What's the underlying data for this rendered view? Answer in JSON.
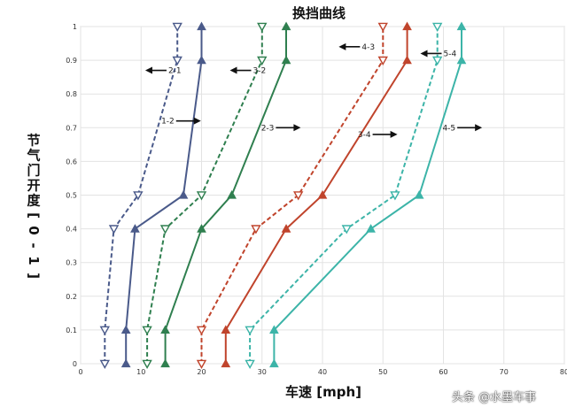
{
  "chart_data": {
    "type": "line",
    "title": "换挡曲线",
    "xlabel": "车速 [mph]",
    "ylabel": "节气门开度 [0-1]",
    "xlim": [
      0,
      80
    ],
    "ylim": [
      0,
      1
    ],
    "xticks": [
      "0",
      "10",
      "20",
      "30",
      "40",
      "50",
      "60",
      "70",
      "80"
    ],
    "yticks": [
      "0",
      "0.1",
      "0.2",
      "0.3",
      "0.4",
      "0.5",
      "0.6",
      "0.7",
      "0.8",
      "0.9",
      "1"
    ],
    "grid": true,
    "series": [
      {
        "name": "1-2",
        "style": "solid",
        "marker": "triangle-up",
        "color": "#4a5a8a",
        "x": [
          7.5,
          7.5,
          9,
          17,
          20,
          20
        ],
        "y": [
          0,
          0.1,
          0.4,
          0.5,
          0.9,
          1
        ]
      },
      {
        "name": "2-1",
        "style": "dashed",
        "marker": "triangle-down",
        "color": "#4a5a8a",
        "x": [
          4,
          4,
          5.5,
          9.5,
          16,
          16
        ],
        "y": [
          0,
          0.1,
          0.4,
          0.5,
          0.9,
          1
        ]
      },
      {
        "name": "2-3",
        "style": "solid",
        "marker": "triangle-up",
        "color": "#2f7f4f",
        "x": [
          14,
          14,
          20,
          25,
          34,
          34
        ],
        "y": [
          0,
          0.1,
          0.4,
          0.5,
          0.9,
          1
        ]
      },
      {
        "name": "3-2",
        "style": "dashed",
        "marker": "triangle-down",
        "color": "#2f7f4f",
        "x": [
          11,
          11,
          14,
          20,
          30,
          30
        ],
        "y": [
          0,
          0.1,
          0.4,
          0.5,
          0.9,
          1
        ]
      },
      {
        "name": "3-4",
        "style": "solid",
        "marker": "triangle-up",
        "color": "#c0442c",
        "x": [
          24,
          24,
          34,
          40,
          54,
          54
        ],
        "y": [
          0,
          0.1,
          0.4,
          0.5,
          0.9,
          1
        ]
      },
      {
        "name": "4-3",
        "style": "dashed",
        "marker": "triangle-down",
        "color": "#c0442c",
        "x": [
          20,
          20,
          29,
          36,
          50,
          50
        ],
        "y": [
          0,
          0.1,
          0.4,
          0.5,
          0.9,
          1
        ]
      },
      {
        "name": "4-5",
        "style": "solid",
        "marker": "triangle-up",
        "color": "#3cb4a8",
        "x": [
          32,
          32,
          48,
          56,
          63,
          63
        ],
        "y": [
          0,
          0.1,
          0.4,
          0.5,
          0.9,
          1
        ]
      },
      {
        "name": "5-4",
        "style": "dashed",
        "marker": "triangle-down",
        "color": "#3cb4a8",
        "x": [
          28,
          28,
          44,
          52,
          59,
          59
        ],
        "y": [
          0,
          0.1,
          0.4,
          0.5,
          0.9,
          1
        ]
      }
    ],
    "annotations": [
      {
        "text": "1-2",
        "arrow": "right",
        "x": 15.5,
        "y": 0.72
      },
      {
        "text": "2-1",
        "arrow": "left",
        "x": 14.5,
        "y": 0.87
      },
      {
        "text": "2-3",
        "arrow": "right",
        "x": 32,
        "y": 0.7
      },
      {
        "text": "3-2",
        "arrow": "left",
        "x": 28.5,
        "y": 0.87
      },
      {
        "text": "3-4",
        "arrow": "right",
        "x": 48,
        "y": 0.68
      },
      {
        "text": "4-3",
        "arrow": "left",
        "x": 46.5,
        "y": 0.94
      },
      {
        "text": "4-5",
        "arrow": "right",
        "x": 62,
        "y": 0.7
      },
      {
        "text": "5-4",
        "arrow": "left",
        "x": 60,
        "y": 0.92
      }
    ]
  },
  "watermark": "头条 @水墨车事"
}
